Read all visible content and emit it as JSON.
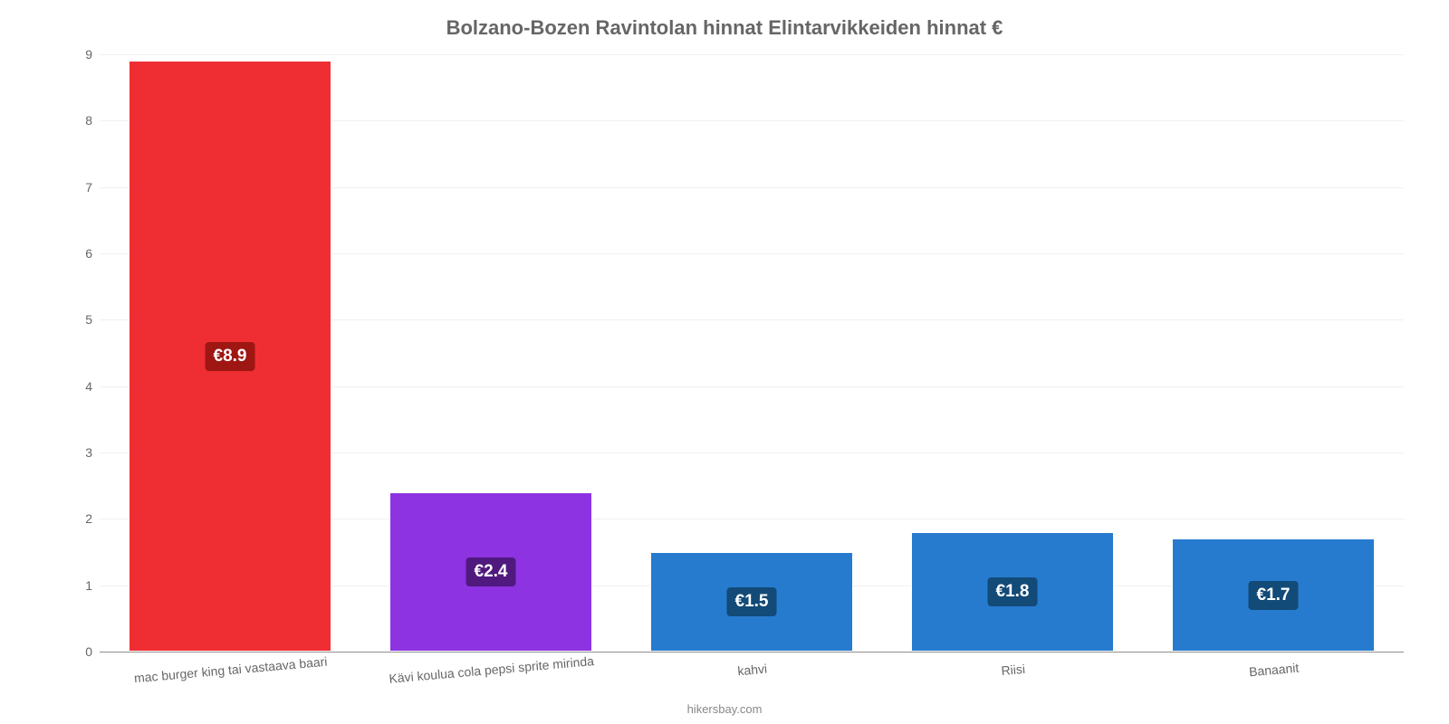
{
  "chart": {
    "type": "bar",
    "title": "Bolzano-Bozen Ravintolan hinnat Elintarvikkeiden hinnat €",
    "title_fontsize": 22,
    "title_color": "#666666",
    "credit": "hikersbay.com",
    "credit_fontsize": 13,
    "credit_color": "#888888",
    "background_color": "#ffffff",
    "grid_color": "#f0f0f0",
    "axis_line_color": "#909090",
    "tick_label_color": "#666666",
    "tick_label_fontsize": 14,
    "xtick_label_fontsize": 14,
    "xtick_rotation_deg": -5,
    "badge_text_color": "#ffffff",
    "badge_fontsize": 19,
    "ylim": [
      0,
      9
    ],
    "yticks": [
      0,
      1,
      2,
      3,
      4,
      5,
      6,
      7,
      8,
      9
    ],
    "bar_width_ratio": 0.78,
    "categories": [
      "mac burger king tai vastaava baari",
      "Kävi koulua cola pepsi sprite mirinda",
      "kahvi",
      "Riisi",
      "Banaanit"
    ],
    "values": [
      8.9,
      2.4,
      1.5,
      1.8,
      1.7
    ],
    "value_labels": [
      "€8.9",
      "€2.4",
      "€1.5",
      "€1.8",
      "€1.7"
    ],
    "bar_colors": [
      "#ef2e33",
      "#8d33e1",
      "#277bcf",
      "#277bcf",
      "#277bcf"
    ],
    "badge_colors": [
      "#9e1713",
      "#50197e",
      "#124a78",
      "#124a78",
      "#124a78"
    ]
  }
}
